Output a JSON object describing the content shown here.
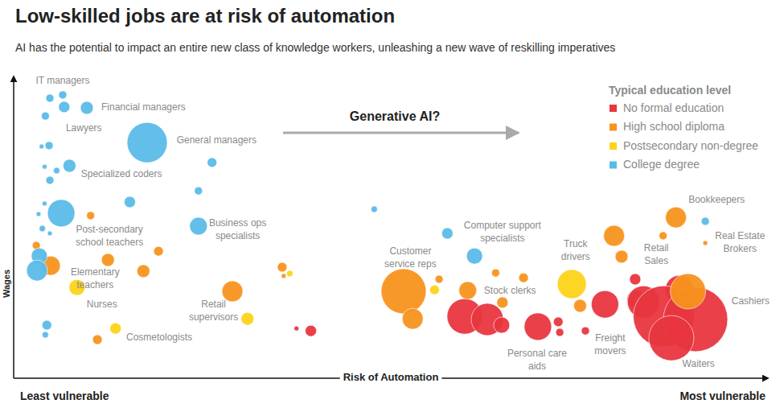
{
  "chart_data": {
    "type": "scatter",
    "title": "Low-skilled jobs are at risk of automation",
    "subtitle": "AI has the potential to impact an entire new class of knowledge workers, unleashing a new wave of reskilling imperatives",
    "x_label": "Risk of Automation",
    "y_label": "Wages",
    "x_low_label": "Least vulnerable",
    "x_high_label": "Most vulnerable",
    "arrow_label": "Generative AI?",
    "legend_title": "Typical education level",
    "legend": "top-right",
    "xlim": [
      0,
      100
    ],
    "ylim": [
      0,
      100
    ],
    "xticks": [],
    "yticks": [],
    "tick_labels": false,
    "series": [
      {
        "name": "No formal education",
        "color": "#e8363f",
        "x": [
          37.5,
          39.4,
          59.8,
          62.8,
          64.7,
          69.5,
          72.2,
          72.4,
          75.8,
          78.4,
          82.4,
          82.6,
          83.5,
          88.3,
          86.2,
          90.4,
          87.2
        ],
        "values": [
          16.5,
          15.7,
          20.5,
          19.5,
          17.6,
          17.1,
          18.7,
          15.2,
          15.7,
          24.5,
          32.8,
          26.1,
          25.3,
          29.3,
          20.5,
          19.5,
          13.3
        ],
        "sizes": [
          9,
          49,
          484,
          400,
          100,
          289,
          36,
          25,
          25,
          289,
          49,
          144,
          400,
          324,
          1444,
          1600,
          784
        ]
      },
      {
        "name": "High school diploma",
        "color": "#f7941d",
        "x": [
          10.2,
          3.0,
          4.9,
          12.5,
          19.2,
          17.2,
          29.0,
          35.6,
          35.8,
          11.1,
          51.7,
          52.9,
          56.4,
          60.2,
          63.9,
          67.6,
          64.8,
          79.6,
          80.6,
          86.1,
          87.8,
          91.7,
          75.1,
          89.4
        ],
        "values": [
          53.9,
          44.0,
          37.3,
          39.2,
          42.1,
          35.5,
          28.8,
          36.8,
          33.9,
          12.8,
          28.8,
          19.7,
          32.8,
          29.1,
          34.9,
          33.3,
          25.1,
          47.2,
          40.3,
          47.2,
          53.3,
          44.8,
          24.0,
          28.8
        ],
        "sizes": [
          25,
          25,
          144,
          64,
          36,
          64,
          169,
          36,
          9,
          36,
          784,
          169,
          25,
          121,
          25,
          36,
          49,
          169,
          64,
          25,
          169,
          9,
          64,
          484
        ]
      },
      {
        "name": "Postsecondary non-degree",
        "color": "#fdd319",
        "x": [
          8.4,
          13.5,
          31.0,
          36.6,
          55.8,
          74.0
        ],
        "values": [
          30.1,
          16.5,
          19.7,
          34.7,
          29.3,
          31.2
        ],
        "sizes": [
          100,
          49,
          64,
          16,
          36,
          324
        ]
      },
      {
        "name": "College degree",
        "color": "#5bbbe8",
        "x": [
          4.8,
          6.5,
          6.7,
          9.7,
          4.2,
          17.7,
          26.3,
          3.7,
          4.7,
          4.1,
          7.4,
          5.7,
          4.8,
          15.4,
          24.5,
          4.1,
          3.3,
          6.3,
          3.8,
          4.8,
          24.5,
          3.4,
          3.1,
          47.8,
          57.5,
          61.1,
          91.7,
          4.4,
          4.2
        ],
        "values": [
          92.8,
          93.9,
          89.9,
          89.6,
          86.9,
          78.1,
          71.5,
          76.8,
          77.1,
          70.1,
          70.4,
          68.8,
          65.6,
          58.4,
          62.1,
          57.9,
          54.4,
          54.7,
          49.6,
          48.0,
          50.4,
          40.5,
          35.7,
          56.0,
          48.0,
          40.5,
          52.0,
          17.6,
          14.4
        ],
        "sizes": [
          25,
          25,
          49,
          64,
          25,
          625,
          36,
          9,
          25,
          9,
          64,
          16,
          25,
          49,
          25,
          9,
          9,
          289,
          16,
          9,
          121,
          100,
          169,
          16,
          49,
          100,
          25,
          36,
          16
        ]
      }
    ],
    "annotations": [
      {
        "lines": [
          "IT managers"
        ],
        "x": 6.5,
        "y": 98.4
      },
      {
        "lines": [
          "Financial managers"
        ],
        "x": 17.2,
        "y": 89.6
      },
      {
        "lines": [
          "Lawyers"
        ],
        "x": 9.3,
        "y": 82.7
      },
      {
        "lines": [
          "General managers"
        ],
        "x": 26.9,
        "y": 78.7
      },
      {
        "lines": [
          "Specialized coders"
        ],
        "x": 14.3,
        "y": 67.5
      },
      {
        "lines": [
          "Post-secondary",
          "school teachers"
        ],
        "x": 12.7,
        "y": 49.1
      },
      {
        "lines": [
          "Business ops",
          "specialists"
        ],
        "x": 29.7,
        "y": 51.2
      },
      {
        "lines": [
          "Elementary",
          "teachers"
        ],
        "x": 10.8,
        "y": 34.9
      },
      {
        "lines": [
          "Nurses"
        ],
        "x": 11.7,
        "y": 24.3
      },
      {
        "lines": [
          "Retail",
          "supervisors"
        ],
        "x": 26.5,
        "y": 24.3
      },
      {
        "lines": [
          "Cosmetologists"
        ],
        "x": 19.3,
        "y": 13.3
      },
      {
        "lines": [
          "Customer",
          "service reps"
        ],
        "x": 52.6,
        "y": 41.9
      },
      {
        "lines": [
          "Computer support",
          "specialists"
        ],
        "x": 64.8,
        "y": 50.4
      },
      {
        "lines": [
          "Truck",
          "drivers"
        ],
        "x": 74.5,
        "y": 44.3
      },
      {
        "lines": [
          "Stock clerks"
        ],
        "x": 65.8,
        "y": 28.8
      },
      {
        "lines": [
          "Retail",
          "Sales"
        ],
        "x": 85.2,
        "y": 42.9
      },
      {
        "lines": [
          "Bookkeepers"
        ],
        "x": 93.2,
        "y": 58.9
      },
      {
        "lines": [
          "Real Estate",
          "Brokers"
        ],
        "x": 96.3,
        "y": 46.9
      },
      {
        "lines": [
          "Cashiers"
        ],
        "x": 97.7,
        "y": 25.3
      },
      {
        "lines": [
          "Personal care",
          "aids"
        ],
        "x": 69.4,
        "y": 8.0
      },
      {
        "lines": [
          "Freight",
          "movers"
        ],
        "x": 79.1,
        "y": 13.1
      },
      {
        "lines": [
          "Waiters"
        ],
        "x": 90.8,
        "y": 4.5
      }
    ]
  }
}
